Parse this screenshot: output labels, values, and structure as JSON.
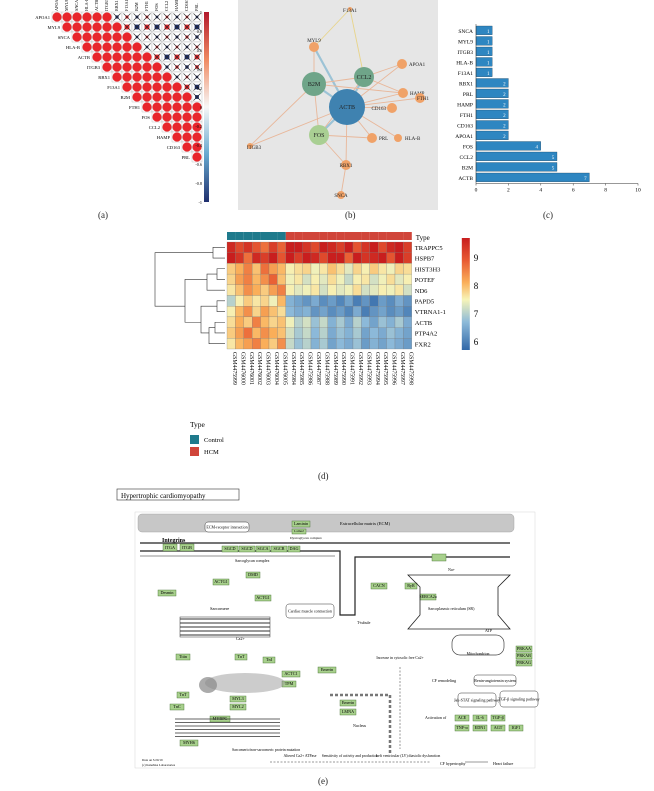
{
  "panel_labels": {
    "a": "(a)",
    "b": "(b)",
    "c": "(c)",
    "d": "(d)",
    "e": "(e)"
  },
  "corr": {
    "genes": [
      "APOA1",
      "MYL9",
      "SNCA",
      "HLA-B",
      "ACTB",
      "ITGB3",
      "RBX1",
      "F13A1",
      "B2M",
      "FTH1",
      "FOS",
      "CCL2",
      "HAMP",
      "CD163",
      "PRL"
    ],
    "top_labels": [
      "APOA1",
      "MYL9",
      "SNCA",
      "HLA-B",
      "ACTB",
      "ITGB3",
      "RBX1",
      "F13A1",
      "B2M",
      "FTH1",
      "FOS",
      "CCL2",
      "HAMP",
      "CD163",
      "PRL"
    ],
    "scale_ticks": [
      "1",
      "0.8",
      "0.6",
      "0.4",
      "0.2",
      "0",
      "-0.2",
      "-0.4",
      "-0.6",
      "-0.8",
      "-1"
    ],
    "colors": {
      "pos": "#e8262b",
      "neg": "#1f2f6e"
    }
  },
  "network": {
    "nodes": [
      {
        "label": "ACTB",
        "color": "#3f82b0"
      },
      {
        "label": "B2M",
        "color": "#6fa589"
      },
      {
        "label": "CCL2",
        "color": "#6fa589"
      },
      {
        "label": "FOS",
        "color": "#a9cf93"
      },
      {
        "label": "MYL9",
        "color": "#f0a268"
      },
      {
        "label": "APOA1",
        "color": "#f0a268"
      },
      {
        "label": "HAMP",
        "color": "#f0a268"
      },
      {
        "label": "FTH1",
        "color": "#f0a268"
      },
      {
        "label": "CD163",
        "color": "#f0a268"
      },
      {
        "label": "PRL",
        "color": "#f0a268"
      },
      {
        "label": "HLA-B",
        "color": "#f0a268"
      },
      {
        "label": "RBX1",
        "color": "#f0a268"
      },
      {
        "label": "ITGB3",
        "color": "#f0a268"
      },
      {
        "label": "SNCA",
        "color": "#f0a268"
      },
      {
        "label": "F13A1",
        "color": "#f0a268"
      }
    ]
  },
  "chart_data": [
    {
      "type": "bar",
      "orientation": "horizontal",
      "categories": [
        "SNCA",
        "MYL9",
        "ITGB3",
        "HLA-B",
        "F13A1",
        "RBX1",
        "PRL",
        "HAMP",
        "FTH1",
        "CD163",
        "APOA1",
        "FOS",
        "CCL2",
        "B2M",
        "ACTB"
      ],
      "values": [
        1,
        1,
        1,
        1,
        1,
        2,
        2,
        2,
        2,
        2,
        2,
        4,
        5,
        5,
        7
      ],
      "xticks": [
        "0",
        "2",
        "4",
        "6",
        "8",
        "10"
      ],
      "xlim": [
        0,
        10
      ],
      "bar_color": "#2e86c1"
    },
    {
      "type": "heatmap",
      "rows": [
        "TRAPPC5",
        "HSPB7",
        "HIST3H3",
        "POTEF",
        "ND6",
        "PAPD5",
        "VTRNA1-1",
        "ACTB",
        "PTP4A2",
        "FXR2"
      ],
      "columns": [
        "GSM4475999",
        "GSM4476000",
        "GSM4476001",
        "GSM4476002",
        "GSM4476003",
        "GSM4476004",
        "GSM4476005",
        "GSM4475984",
        "GSM4475985",
        "GSM4475986",
        "GSM4475987",
        "GSM4475988",
        "GSM4475989",
        "GSM4475990",
        "GSM4475991",
        "GSM4475992",
        "GSM4475993",
        "GSM4475994",
        "GSM4475995",
        "GSM4475996",
        "GSM4475997",
        "GSM4475998"
      ],
      "column_types": [
        "Control",
        "Control",
        "Control",
        "Control",
        "Control",
        "Control",
        "Control",
        "HCM",
        "HCM",
        "HCM",
        "HCM",
        "HCM",
        "HCM",
        "HCM",
        "HCM",
        "HCM",
        "HCM",
        "HCM",
        "HCM",
        "HCM",
        "HCM",
        "HCM"
      ],
      "values": [
        [
          9.6,
          9.3,
          9.5,
          9.2,
          9.0,
          9.4,
          9.1,
          9.7,
          9.9,
          9.5,
          9.3,
          9.8,
          9.6,
          9.4,
          9.9,
          9.2,
          9.5,
          9.7,
          9.3,
          9.6,
          9.8,
          9.4
        ],
        [
          9.8,
          9.5,
          9.0,
          9.6,
          9.4,
          9.7,
          9.2,
          9.9,
          9.4,
          9.8,
          9.6,
          9.3,
          9.9,
          9.7,
          9.1,
          9.8,
          9.5,
          9.6,
          9.9,
          9.2,
          9.7,
          9.4
        ],
        [
          8.3,
          8.6,
          8.9,
          8.4,
          9.0,
          8.7,
          8.5,
          7.9,
          8.1,
          8.2,
          7.8,
          8.0,
          8.4,
          8.1,
          7.7,
          8.2,
          7.9,
          8.3,
          8.0,
          7.8,
          8.2,
          8.1
        ],
        [
          8.2,
          8.7,
          8.9,
          8.5,
          8.8,
          9.1,
          8.4,
          7.8,
          8.0,
          7.6,
          7.9,
          7.7,
          8.1,
          7.8,
          7.5,
          7.9,
          8.0,
          7.6,
          7.8,
          8.1,
          7.7,
          7.9
        ],
        [
          8.0,
          8.4,
          8.8,
          8.6,
          8.3,
          8.7,
          8.9,
          7.9,
          7.7,
          7.8,
          8.0,
          7.6,
          7.9,
          7.7,
          7.8,
          8.1,
          7.6,
          7.7,
          7.9,
          7.8,
          8.0,
          7.6
        ],
        [
          7.4,
          7.9,
          8.3,
          8.0,
          8.2,
          7.8,
          8.5,
          7.0,
          6.8,
          6.6,
          6.9,
          6.5,
          6.7,
          6.4,
          6.8,
          6.3,
          6.6,
          6.2,
          6.7,
          6.5,
          6.9,
          6.6
        ],
        [
          7.9,
          8.5,
          8.8,
          8.2,
          8.7,
          8.4,
          8.1,
          7.1,
          6.9,
          7.0,
          6.6,
          6.8,
          6.5,
          6.7,
          6.4,
          6.9,
          6.3,
          6.6,
          6.8,
          6.5,
          6.7,
          6.4
        ],
        [
          8.1,
          8.6,
          8.3,
          8.9,
          8.5,
          8.2,
          8.4,
          7.8,
          7.4,
          7.6,
          7.2,
          7.5,
          7.0,
          7.3,
          6.9,
          7.4,
          7.1,
          6.8,
          7.2,
          7.0,
          7.3,
          6.9
        ],
        [
          8.3,
          8.7,
          9.0,
          8.5,
          8.8,
          8.6,
          8.4,
          7.6,
          7.3,
          7.5,
          7.1,
          7.4,
          6.9,
          7.2,
          7.0,
          7.3,
          6.8,
          7.1,
          6.9,
          7.2,
          7.0,
          6.8
        ],
        [
          8.0,
          8.5,
          8.7,
          8.9,
          8.6,
          8.3,
          8.8,
          7.5,
          7.2,
          7.4,
          7.0,
          7.3,
          6.8,
          7.1,
          6.9,
          7.2,
          6.7,
          7.0,
          6.8,
          7.1,
          6.9,
          6.7
        ]
      ],
      "scale_ticks": [
        "9",
        "8",
        "7",
        "6"
      ],
      "legend_title": "Type",
      "legend_items": [
        {
          "label": "Control",
          "color": "#1f7a8c"
        },
        {
          "label": "HCM",
          "color": "#d0453a"
        }
      ]
    }
  ],
  "pathway": {
    "title": "Hypertrophic cardiomyopathy",
    "ecm": "Extracellular matrix (ECM)",
    "integrins": "Integrins",
    "ecm_receptor": "ECM-receptor interaction",
    "sarcoglycan": "Sarcoglycan complex",
    "dystroglycan": "Dystroglycan complex",
    "sarcomere": "Sarcomere",
    "cardiac_contraction": "Cardiac muscle contraction",
    "t_tubule": "T-tubule",
    "sarcoplasmic": "Sarcoplasmic reticulum (SR)",
    "mitochondrion": "Mitochondrion",
    "nucleus": "Nucleus",
    "increase_ca": "Increase in cytosolic free Ca2+",
    "atp": "ATP",
    "renin": "Renin-angiotensin system",
    "jak": "Jak-STAT signaling pathway",
    "tgfb": "TGF-β signaling pathway",
    "cf_remodel": "CF remodeling",
    "cf_hyper": "CF hypertrophy",
    "heart_failure": "Heart failure",
    "activation": "Activation of",
    "genes": {
      "itga": "ITGA",
      "itgb": "ITGB",
      "sgcd": "SGCD",
      "sgcd2": "SGCD",
      "sgca": "SGCA",
      "sgcb": "SGCB",
      "dag": "DAG",
      "laminin": "Laminin",
      "lama": "Lama2",
      "dmd": "DMD",
      "actg": "ACTG1",
      "desmin": "Desmin",
      "actg2": "ACTG1",
      "cacna": "CACN",
      "ryr": "RyR",
      "serca": "SERCA2a",
      "titin": "Titin",
      "tnt": "TnT",
      "tnt2": "TnT",
      "tnc": "TnC",
      "tni": "TnI",
      "actc": "ACTC1",
      "tpm": "TPM",
      "myl3": "MYL3",
      "myl2": "MYL2",
      "mybpc": "MYBPC",
      "myh": "MYH6",
      "emerin": "Emerin",
      "lmna": "LMNA",
      "prkaa": "PRKAA",
      "prkab": "PRKAB",
      "prkag": "PRKAG",
      "ace": "ACE",
      "il6": "IL-6",
      "tgfb1": "TGF-β",
      "tnf": "TNF-α",
      "tgfb2": "TGF-β",
      "edn": "EDN1",
      "angii": "AGT",
      "igf": "IGF1",
      "ctf": "CTF1"
    },
    "labels_misc": {
      "sarcomeric_mut": "Sarcomeric/non-sarcomeric protein mutation",
      "ca_atpase": "Sensitivity of activity and production",
      "left_ventricle": "Left ventricular (LV) diastolic dysfunction",
      "altered": "Altered Ca2+ ATPase",
      "ca": "Ca2+",
      "na": "Na+"
    },
    "footer": [
      "Data on 5/20/19",
      "(c) Kanehisa Laboratories"
    ]
  }
}
